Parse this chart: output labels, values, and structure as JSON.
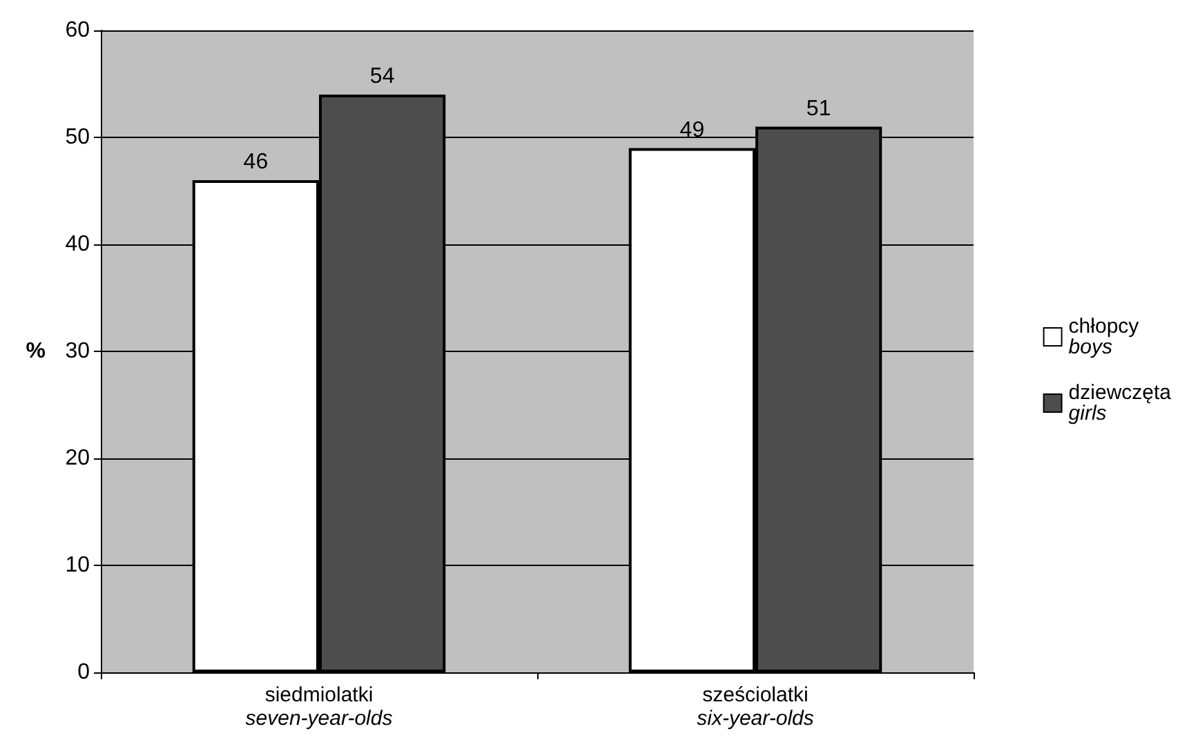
{
  "chart_data": {
    "type": "bar",
    "ylabel": "%",
    "categories": [
      "siedmiolatki\nseven-year-olds",
      "sześciolatki\nsix-year-olds"
    ],
    "series": [
      {
        "name": "chłopcy\nboys",
        "color": "#ffffff",
        "values": [
          46,
          49
        ]
      },
      {
        "name": "dziewczęta\ngirls",
        "color": "#4d4d4d",
        "values": [
          54,
          51
        ]
      }
    ],
    "ylim": [
      0,
      60
    ],
    "yticks": [
      0,
      10,
      20,
      30,
      40,
      50,
      60
    ],
    "grid": "y",
    "legend": "right",
    "data_labels": true
  }
}
